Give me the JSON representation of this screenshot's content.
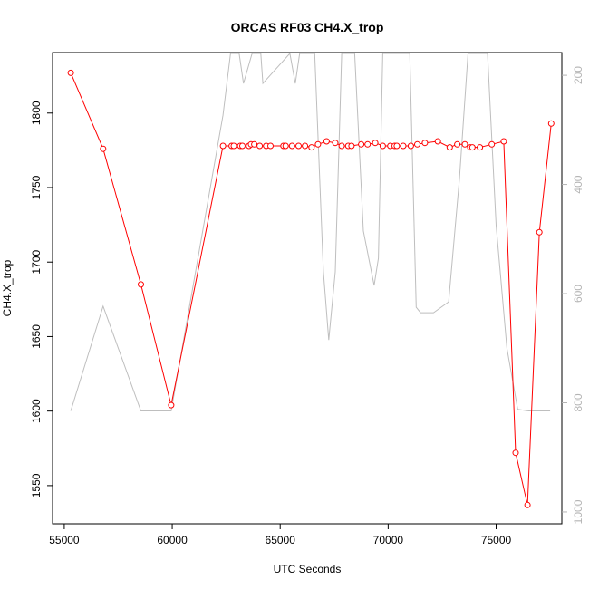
{
  "chart_data": {
    "type": "line",
    "title": "ORCAS RF03 CH4.X_trop",
    "xlabel": "UTC Seconds",
    "ylabel": "CH4.X_trop",
    "xlim": [
      54500,
      78000
    ],
    "ylim": [
      1525,
      1840
    ],
    "y2lim": [
      1020,
      160
    ],
    "y2_reversed": true,
    "x_ticks": [
      55000,
      60000,
      65000,
      70000,
      75000
    ],
    "y_ticks": [
      1550,
      1600,
      1650,
      1700,
      1750,
      1800
    ],
    "y2_ticks": [
      200,
      400,
      600,
      800,
      1000
    ],
    "grid": false,
    "colors": {
      "primary": "#ff0000",
      "secondary": "#bebebe",
      "axis": "#000000",
      "secondary_axis": "#b4b4b4"
    },
    "series": [
      {
        "axis": "left",
        "x": [
          55300,
          56800,
          58550,
          59950,
          62350,
          62750,
          62850,
          63150,
          63250,
          63550,
          63650,
          63800,
          64050,
          64350,
          64550,
          65150,
          65250,
          65550,
          65850,
          66150,
          66450,
          66750,
          67150,
          67550,
          67850,
          68150,
          68300,
          68750,
          69050,
          69400,
          69750,
          70100,
          70300,
          70400,
          70700,
          71050,
          71350,
          71700,
          72300,
          72850,
          73200,
          73550,
          73800,
          73900,
          74250,
          74800,
          75350,
          75900,
          76450,
          77000,
          77550
        ],
        "y": [
          1827,
          1776,
          1685,
          1604,
          1778,
          1778,
          1778,
          1778,
          1778,
          1778,
          1779,
          1779,
          1778,
          1778,
          1778,
          1778,
          1778,
          1778,
          1778,
          1778,
          1777,
          1779,
          1781,
          1780,
          1778,
          1778,
          1778,
          1779,
          1779,
          1780,
          1778,
          1778,
          1778,
          1778,
          1778,
          1778,
          1779,
          1780,
          1781,
          1777,
          1779,
          1779,
          1777,
          1777,
          1777,
          1779,
          1781,
          1572,
          1537,
          1720,
          1793
        ]
      },
      {
        "axis": "right",
        "x": [
          55300,
          56800,
          58550,
          59950,
          62350,
          62700,
          63100,
          63300,
          63700,
          63900,
          64100,
          64200,
          65450,
          65700,
          65900,
          66600,
          67000,
          67250,
          67550,
          67850,
          68200,
          68450,
          68850,
          69100,
          69350,
          69550,
          69750,
          70000,
          70200,
          70500,
          70750,
          71000,
          71300,
          71500,
          72100,
          72800,
          73300,
          73700,
          73900,
          74050,
          74300,
          74600,
          75000,
          75500,
          76000,
          76500,
          77000,
          77500
        ],
        "y": [
          815,
          623,
          815,
          815,
          273,
          160,
          160,
          215,
          160,
          160,
          160,
          215,
          160,
          215,
          160,
          160,
          560,
          685,
          560,
          160,
          160,
          160,
          485,
          535,
          585,
          535,
          160,
          160,
          160,
          160,
          160,
          160,
          625,
          635,
          635,
          615,
          390,
          160,
          160,
          160,
          160,
          160,
          475,
          700,
          812,
          815,
          815,
          815
        ]
      }
    ]
  }
}
